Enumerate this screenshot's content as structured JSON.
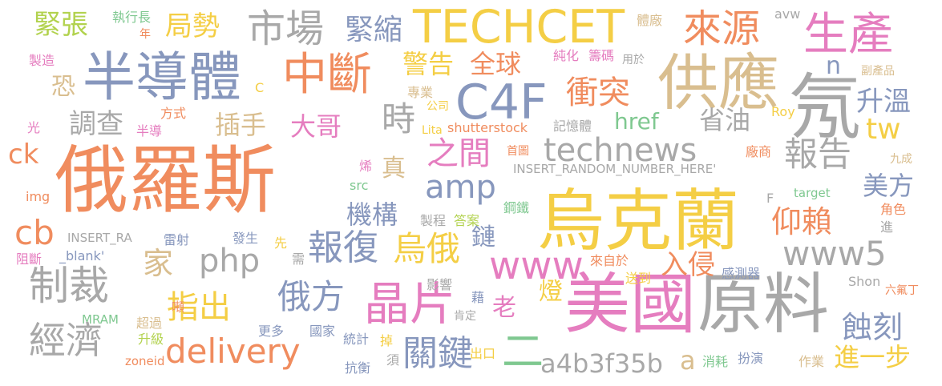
{
  "palette": {
    "orange": "#F08C5E",
    "slate": "#8797BD",
    "yellow": "#F4CE45",
    "tan": "#D9BE8F",
    "pink": "#E57DBF",
    "green": "#7FC890",
    "gray": "#A8A8A8",
    "lime": "#B2D24E"
  },
  "words": [
    {
      "text": "俄羅斯",
      "color": "orange"
    },
    {
      "text": "烏克蘭",
      "color": "yellow"
    },
    {
      "text": "美國",
      "color": "pink"
    },
    {
      "text": "原料",
      "color": "gray"
    },
    {
      "text": "供應",
      "color": "tan"
    },
    {
      "text": "半導體",
      "color": "slate"
    },
    {
      "text": "氖",
      "color": "gray"
    },
    {
      "text": "C4F",
      "color": "slate"
    },
    {
      "text": "TECHCET",
      "color": "yellow"
    },
    {
      "text": "中斷",
      "color": "orange"
    },
    {
      "text": "生產",
      "color": "pink"
    },
    {
      "text": "晶片",
      "color": "pink"
    },
    {
      "text": "制裁",
      "color": "gray"
    },
    {
      "text": "technews",
      "color": "gray"
    },
    {
      "text": "市場",
      "color": "gray"
    },
    {
      "text": "來源",
      "color": "orange"
    },
    {
      "text": "經濟",
      "color": "gray"
    },
    {
      "text": "delivery",
      "color": "orange"
    },
    {
      "text": "報復",
      "color": "slate"
    },
    {
      "text": "www5",
      "color": "gray"
    },
    {
      "text": "www",
      "color": "pink"
    },
    {
      "text": "php",
      "color": "gray"
    },
    {
      "text": "amp",
      "color": "slate"
    },
    {
      "text": "關鍵",
      "color": "slate"
    },
    {
      "text": "a4b3f35b",
      "color": "gray"
    },
    {
      "text": "烏俄",
      "color": "yellow"
    },
    {
      "text": "cb",
      "color": "orange"
    },
    {
      "text": "俄方",
      "color": "slate"
    },
    {
      "text": "指出",
      "color": "yellow"
    },
    {
      "text": "報告",
      "color": "gray"
    },
    {
      "text": "衝突",
      "color": "orange"
    },
    {
      "text": "時",
      "color": "gray"
    },
    {
      "text": "之間",
      "color": "pink"
    },
    {
      "text": "蝕刻",
      "color": "slate"
    },
    {
      "text": "仰賴",
      "color": "orange"
    },
    {
      "text": "警告",
      "color": "yellow"
    },
    {
      "text": "緊縮",
      "color": "slate"
    },
    {
      "text": "局勢",
      "color": "yellow"
    },
    {
      "text": "緊張",
      "color": "lime"
    },
    {
      "text": "全球",
      "color": "orange"
    },
    {
      "text": "調查",
      "color": "gray"
    },
    {
      "text": "插手",
      "color": "tan"
    },
    {
      "text": "大哥",
      "color": "pink"
    },
    {
      "text": "href",
      "color": "green"
    },
    {
      "text": "省油",
      "color": "gray"
    },
    {
      "text": "升溫",
      "color": "slate"
    },
    {
      "text": "機構",
      "color": "slate"
    },
    {
      "text": "家",
      "color": "tan"
    },
    {
      "text": "入侵",
      "color": "orange"
    },
    {
      "text": "進一步",
      "color": "yellow"
    },
    {
      "text": "美方",
      "color": "slate"
    },
    {
      "text": "tw",
      "color": "yellow"
    },
    {
      "text": "ck",
      "color": "orange"
    },
    {
      "text": "恐",
      "color": "tan"
    },
    {
      "text": "n",
      "color": "slate"
    },
    {
      "text": "二",
      "color": "green"
    },
    {
      "text": "a",
      "color": "tan"
    },
    {
      "text": "老",
      "color": "pink"
    },
    {
      "text": "燈",
      "color": "yellow"
    },
    {
      "text": "鏈",
      "color": "slate"
    },
    {
      "text": "真",
      "color": "tan"
    },
    {
      "text": "執行長",
      "color": "green"
    },
    {
      "text": "年",
      "color": "orange"
    },
    {
      "text": "製造",
      "color": "pink"
    },
    {
      "text": "C",
      "color": "yellow"
    },
    {
      "text": "專業",
      "color": "tan"
    },
    {
      "text": "公司",
      "color": "yellow"
    },
    {
      "text": "純化",
      "color": "pink"
    },
    {
      "text": "籌碼",
      "color": "pink"
    },
    {
      "text": "用於",
      "color": "gray"
    },
    {
      "text": "體廠",
      "color": "tan"
    },
    {
      "text": "avw",
      "color": "gray"
    },
    {
      "text": "副產品",
      "color": "tan"
    },
    {
      "text": "Roy",
      "color": "yellow"
    },
    {
      "text": "九成",
      "color": "tan"
    },
    {
      "text": "方式",
      "color": "orange"
    },
    {
      "text": "光",
      "color": "pink"
    },
    {
      "text": "半導",
      "color": "pink"
    },
    {
      "text": "Lita",
      "color": "yellow"
    },
    {
      "text": "shutterstock",
      "color": "orange"
    },
    {
      "text": "記憶體",
      "color": "gray"
    },
    {
      "text": "首圖",
      "color": "orange"
    },
    {
      "text": "廠商",
      "color": "orange"
    },
    {
      "text": "INSERT_RANDOM_NUMBER_HERE'",
      "color": "gray"
    },
    {
      "text": "烯",
      "color": "pink"
    },
    {
      "text": "src",
      "color": "green"
    },
    {
      "text": "鋼鐵",
      "color": "green"
    },
    {
      "text": "target",
      "color": "green"
    },
    {
      "text": "F",
      "color": "gray"
    },
    {
      "text": "角色",
      "color": "orange"
    },
    {
      "text": "進",
      "color": "gray"
    },
    {
      "text": "img",
      "color": "orange"
    },
    {
      "text": "INSERT_RA",
      "color": "gray"
    },
    {
      "text": "雷射",
      "color": "slate"
    },
    {
      "text": "製程",
      "color": "gray"
    },
    {
      "text": "答案",
      "color": "lime"
    },
    {
      "text": "發生",
      "color": "slate"
    },
    {
      "text": "先",
      "color": "yellow"
    },
    {
      "text": "阻斷",
      "color": "pink"
    },
    {
      "text": "_blank'",
      "color": "slate"
    },
    {
      "text": "需",
      "color": "gray"
    },
    {
      "text": "來自於",
      "color": "orange"
    },
    {
      "text": "送到",
      "color": "yellow"
    },
    {
      "text": "感測器",
      "color": "slate"
    },
    {
      "text": "Shon",
      "color": "gray"
    },
    {
      "text": "六氟丁",
      "color": "orange"
    },
    {
      "text": "影響",
      "color": "gray"
    },
    {
      "text": "藉",
      "color": "slate"
    },
    {
      "text": "肯定",
      "color": "gray"
    },
    {
      "text": "噸",
      "color": "orange"
    },
    {
      "text": "MRAM",
      "color": "green"
    },
    {
      "text": "超過",
      "color": "tan"
    },
    {
      "text": "升級",
      "color": "lime"
    },
    {
      "text": "更多",
      "color": "slate"
    },
    {
      "text": "國家",
      "color": "slate"
    },
    {
      "text": "統計",
      "color": "slate"
    },
    {
      "text": "掉",
      "color": "yellow"
    },
    {
      "text": "出口",
      "color": "yellow"
    },
    {
      "text": "須",
      "color": "gray"
    },
    {
      "text": "抗衡",
      "color": "slate"
    },
    {
      "text": "zoneid",
      "color": "orange"
    },
    {
      "text": "消耗",
      "color": "green"
    },
    {
      "text": "扮演",
      "color": "slate"
    },
    {
      "text": "作業",
      "color": "tan"
    }
  ]
}
